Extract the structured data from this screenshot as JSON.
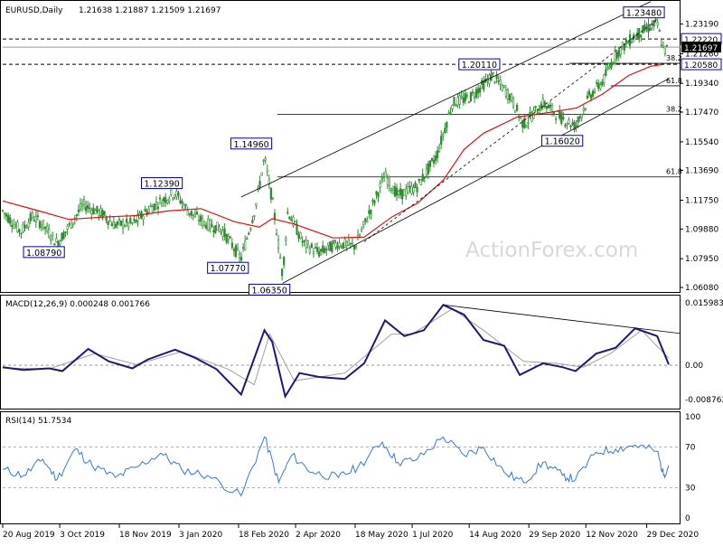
{
  "header": {
    "symbol": "EURUSD,Daily",
    "ohlc": "1.21638 1.21887 1.21509 1.21697"
  },
  "watermark": "ActionForex.com",
  "colors": {
    "candle": "#2e8b2e",
    "ma": "#e01010",
    "trendline": "#000000",
    "macd": "#1a1a7a",
    "signal": "#a0a0a0",
    "rsi": "#3a78d8",
    "label_border": "#0000aa",
    "current_label_bg": "#000000"
  },
  "chart_data": [
    {
      "type": "candlestick",
      "title": "EURUSD,Daily",
      "x_tick_labels": [
        "20 Aug 2019",
        "3 Oct 2019",
        "18 Nov 2019",
        "3 Jan 2020",
        "18 Feb 2020",
        "2 Apr 2020",
        "18 May 2020",
        "1 Jul 2020",
        "14 Aug 2020",
        "29 Sep 2020",
        "12 Nov 2020",
        "29 Dec 2020"
      ],
      "y_tick_labels": [
        "1.23190",
        "1.21260",
        "1.19340",
        "1.17470",
        "1.15540",
        "1.13690",
        "1.11750",
        "1.09880",
        "1.07950",
        "1.06080"
      ],
      "ylim": [
        1.0608,
        1.2405
      ],
      "key_points": [
        {
          "label": "1.08790",
          "date": "2019-10-01",
          "price": 1.0879
        },
        {
          "label": "1.12390",
          "date": "2019-12-31",
          "price": 1.1239
        },
        {
          "label": "1.07770",
          "date": "2020-02-20",
          "price": 1.0777
        },
        {
          "label": "1.14960",
          "date": "2020-03-09",
          "price": 1.1496
        },
        {
          "label": "1.06350",
          "date": "2020-03-23",
          "price": 1.0635
        },
        {
          "label": "1.20110",
          "date": "2020-09-01",
          "price": 1.2011
        },
        {
          "label": "1.16020",
          "date": "2020-11-04",
          "price": 1.1602
        },
        {
          "label": "1.23480",
          "date": "2021-01-06",
          "price": 1.2348
        }
      ],
      "horizontal_levels": [
        {
          "label": "1.22220",
          "price": 1.2222
        },
        {
          "label": "1.20580",
          "price": 1.2058
        }
      ],
      "current_price": {
        "label": "1.21697",
        "price": 1.21697
      },
      "fibonacci_levels": [
        {
          "label": "38.2",
          "price": 1.2064
        },
        {
          "label": "61.8",
          "price": 1.1918
        },
        {
          "label": "38.2",
          "price": 1.1732
        },
        {
          "label": "61.8",
          "price": 1.1326
        }
      ],
      "moving_average_points": [
        {
          "date": "2019-08-20",
          "price": 1.117
        },
        {
          "date": "2019-09-15",
          "price": 1.111
        },
        {
          "date": "2019-10-10",
          "price": 1.105
        },
        {
          "date": "2019-11-05",
          "price": 1.1065
        },
        {
          "date": "2019-12-01",
          "price": 1.1075
        },
        {
          "date": "2019-12-25",
          "price": 1.1105
        },
        {
          "date": "2020-01-20",
          "price": 1.112
        },
        {
          "date": "2020-02-15",
          "price": 1.1035
        },
        {
          "date": "2020-03-05",
          "price": 1.1
        },
        {
          "date": "2020-03-15",
          "price": 1.1055
        },
        {
          "date": "2020-04-01",
          "price": 1.102
        },
        {
          "date": "2020-05-01",
          "price": 1.093
        },
        {
          "date": "2020-05-25",
          "price": 1.0935
        },
        {
          "date": "2020-06-15",
          "price": 1.1065
        },
        {
          "date": "2020-07-05",
          "price": 1.1155
        },
        {
          "date": "2020-07-25",
          "price": 1.1305
        },
        {
          "date": "2020-08-10",
          "price": 1.1505
        },
        {
          "date": "2020-08-25",
          "price": 1.161
        },
        {
          "date": "2020-09-20",
          "price": 1.1715
        },
        {
          "date": "2020-10-15",
          "price": 1.1745
        },
        {
          "date": "2020-11-05",
          "price": 1.1775
        },
        {
          "date": "2020-11-25",
          "price": 1.1865
        },
        {
          "date": "2020-12-15",
          "price": 1.1985
        },
        {
          "date": "2021-01-01",
          "price": 1.2045
        },
        {
          "date": "2021-01-11",
          "price": 1.2058
        }
      ],
      "close_path": [
        {
          "date": "2019-08-20",
          "price": 1.1105
        },
        {
          "date": "2019-09-03",
          "price": 1.097
        },
        {
          "date": "2019-09-12",
          "price": 1.107
        },
        {
          "date": "2019-09-20",
          "price": 1.1015
        },
        {
          "date": "2019-10-01",
          "price": 1.0895
        },
        {
          "date": "2019-10-12",
          "price": 1.1025
        },
        {
          "date": "2019-10-21",
          "price": 1.1145
        },
        {
          "date": "2019-11-05",
          "price": 1.1085
        },
        {
          "date": "2019-11-14",
          "price": 1.1015
        },
        {
          "date": "2019-11-29",
          "price": 1.1025
        },
        {
          "date": "2019-12-12",
          "price": 1.1125
        },
        {
          "date": "2019-12-31",
          "price": 1.1225
        },
        {
          "date": "2020-01-10",
          "price": 1.1105
        },
        {
          "date": "2020-01-23",
          "price": 1.1025
        },
        {
          "date": "2020-02-05",
          "price": 1.0985
        },
        {
          "date": "2020-02-20",
          "price": 1.0795
        },
        {
          "date": "2020-03-02",
          "price": 1.1125
        },
        {
          "date": "2020-03-09",
          "price": 1.1455
        },
        {
          "date": "2020-03-16",
          "price": 1.1125
        },
        {
          "date": "2020-03-23",
          "price": 1.0685
        },
        {
          "date": "2020-03-27",
          "price": 1.1105
        },
        {
          "date": "2020-04-08",
          "price": 1.0895
        },
        {
          "date": "2020-04-20",
          "price": 1.0835
        },
        {
          "date": "2020-05-05",
          "price": 1.0895
        },
        {
          "date": "2020-05-18",
          "price": 1.0875
        },
        {
          "date": "2020-06-01",
          "price": 1.1155
        },
        {
          "date": "2020-06-10",
          "price": 1.1335
        },
        {
          "date": "2020-06-20",
          "price": 1.1205
        },
        {
          "date": "2020-07-05",
          "price": 1.1265
        },
        {
          "date": "2020-07-20",
          "price": 1.1465
        },
        {
          "date": "2020-08-01",
          "price": 1.1805
        },
        {
          "date": "2020-08-15",
          "price": 1.1845
        },
        {
          "date": "2020-09-01",
          "price": 1.1985
        },
        {
          "date": "2020-09-15",
          "price": 1.1845
        },
        {
          "date": "2020-09-25",
          "price": 1.1665
        },
        {
          "date": "2020-10-10",
          "price": 1.1805
        },
        {
          "date": "2020-10-25",
          "price": 1.1705
        },
        {
          "date": "2020-11-04",
          "price": 1.1655
        },
        {
          "date": "2020-11-15",
          "price": 1.1855
        },
        {
          "date": "2020-11-25",
          "price": 1.1945
        },
        {
          "date": "2020-12-05",
          "price": 1.2125
        },
        {
          "date": "2020-12-20",
          "price": 1.2245
        },
        {
          "date": "2021-01-06",
          "price": 1.2325
        },
        {
          "date": "2021-01-11",
          "price": 1.2145
        },
        {
          "date": "2021-01-15",
          "price": 1.2165
        }
      ],
      "channel_lines": [
        {
          "from": {
            "date": "2020-02-20",
            "price": 1.1195
          },
          "to": {
            "date": "2021-01-01",
            "price": 1.2465
          }
        },
        {
          "from": {
            "date": "2020-03-23",
            "price": 1.0635
          },
          "to": {
            "date": "2021-01-15",
            "price": 1.1965
          }
        }
      ]
    },
    {
      "type": "line",
      "title": "MACD(12,26,9) 0.000248 0.001766",
      "y_tick_labels": [
        "0.015983",
        "0.00",
        "-0.008762"
      ],
      "ylim": [
        -0.0095,
        0.0165
      ],
      "series": [
        {
          "name": "MACD",
          "points": [
            {
              "date": "2019-08-20",
              "value": -0.0005
            },
            {
              "date": "2019-09-05",
              "value": -0.0012
            },
            {
              "date": "2019-09-25",
              "value": -0.0008
            },
            {
              "date": "2019-10-05",
              "value": -0.0015
            },
            {
              "date": "2019-10-25",
              "value": 0.0042
            },
            {
              "date": "2019-11-10",
              "value": 0.001
            },
            {
              "date": "2019-11-28",
              "value": -0.0008
            },
            {
              "date": "2019-12-10",
              "value": 0.0015
            },
            {
              "date": "2019-12-31",
              "value": 0.004
            },
            {
              "date": "2020-01-15",
              "value": 0.002
            },
            {
              "date": "2020-02-01",
              "value": -0.001
            },
            {
              "date": "2020-02-20",
              "value": -0.0075
            },
            {
              "date": "2020-03-09",
              "value": 0.009
            },
            {
              "date": "2020-03-15",
              "value": 0.006
            },
            {
              "date": "2020-03-25",
              "value": -0.008
            },
            {
              "date": "2020-04-05",
              "value": -0.002
            },
            {
              "date": "2020-04-20",
              "value": -0.003
            },
            {
              "date": "2020-05-10",
              "value": -0.0035
            },
            {
              "date": "2020-05-25",
              "value": 0.0005
            },
            {
              "date": "2020-06-10",
              "value": 0.0115
            },
            {
              "date": "2020-06-25",
              "value": 0.0075
            },
            {
              "date": "2020-07-10",
              "value": 0.009
            },
            {
              "date": "2020-07-25",
              "value": 0.0155
            },
            {
              "date": "2020-08-10",
              "value": 0.013
            },
            {
              "date": "2020-08-25",
              "value": 0.0065
            },
            {
              "date": "2020-09-10",
              "value": 0.005
            },
            {
              "date": "2020-09-22",
              "value": -0.0025
            },
            {
              "date": "2020-10-10",
              "value": 0.0005
            },
            {
              "date": "2020-10-25",
              "value": -0.0005
            },
            {
              "date": "2020-11-04",
              "value": -0.0015
            },
            {
              "date": "2020-11-20",
              "value": 0.003
            },
            {
              "date": "2020-12-05",
              "value": 0.0045
            },
            {
              "date": "2020-12-20",
              "value": 0.0095
            },
            {
              "date": "2021-01-06",
              "value": 0.0075
            },
            {
              "date": "2021-01-15",
              "value": 0.0002
            }
          ]
        },
        {
          "name": "Signal",
          "points": [
            {
              "date": "2019-08-20",
              "value": -0.0007
            },
            {
              "date": "2019-09-25",
              "value": -0.0009
            },
            {
              "date": "2019-10-30",
              "value": 0.003
            },
            {
              "date": "2019-12-01",
              "value": 0.0002
            },
            {
              "date": "2020-01-05",
              "value": 0.0035
            },
            {
              "date": "2020-02-10",
              "value": -0.001
            },
            {
              "date": "2020-03-01",
              "value": -0.005
            },
            {
              "date": "2020-03-13",
              "value": 0.008
            },
            {
              "date": "2020-04-01",
              "value": -0.004
            },
            {
              "date": "2020-05-10",
              "value": -0.002
            },
            {
              "date": "2020-06-15",
              "value": 0.008
            },
            {
              "date": "2020-07-01",
              "value": 0.008
            },
            {
              "date": "2020-08-01",
              "value": 0.0145
            },
            {
              "date": "2020-08-25",
              "value": 0.009
            },
            {
              "date": "2020-09-25",
              "value": 0.001
            },
            {
              "date": "2020-10-20",
              "value": 0.0005
            },
            {
              "date": "2020-11-10",
              "value": -0.0005
            },
            {
              "date": "2020-12-01",
              "value": 0.003
            },
            {
              "date": "2020-12-25",
              "value": 0.009
            },
            {
              "date": "2021-01-15",
              "value": 0.0018
            }
          ]
        }
      ],
      "trendline": {
        "from": {
          "date": "2020-07-25",
          "value": 0.0155
        },
        "to": {
          "date": "2021-01-15",
          "value": 0.0082
        }
      }
    },
    {
      "type": "line",
      "title": "RSI(14) 51.7534",
      "y_tick_labels": [
        "100",
        "70",
        "30",
        "0"
      ],
      "ylim": [
        0,
        100
      ],
      "reference_levels": [
        70,
        30
      ],
      "series": [
        {
          "name": "RSI",
          "points": [
            {
              "date": "2019-08-20",
              "value": 48
            },
            {
              "date": "2019-09-05",
              "value": 42
            },
            {
              "date": "2019-09-20",
              "value": 58
            },
            {
              "date": "2019-10-01",
              "value": 38
            },
            {
              "date": "2019-10-15",
              "value": 68
            },
            {
              "date": "2019-10-28",
              "value": 52
            },
            {
              "date": "2019-11-15",
              "value": 40
            },
            {
              "date": "2019-12-01",
              "value": 50
            },
            {
              "date": "2019-12-20",
              "value": 64
            },
            {
              "date": "2020-01-05",
              "value": 48
            },
            {
              "date": "2020-01-25",
              "value": 42
            },
            {
              "date": "2020-02-20",
              "value": 22
            },
            {
              "date": "2020-03-09",
              "value": 80
            },
            {
              "date": "2020-03-20",
              "value": 35
            },
            {
              "date": "2020-03-30",
              "value": 62
            },
            {
              "date": "2020-04-15",
              "value": 45
            },
            {
              "date": "2020-05-05",
              "value": 40
            },
            {
              "date": "2020-05-20",
              "value": 50
            },
            {
              "date": "2020-06-08",
              "value": 75
            },
            {
              "date": "2020-06-20",
              "value": 55
            },
            {
              "date": "2020-07-05",
              "value": 58
            },
            {
              "date": "2020-07-25",
              "value": 80
            },
            {
              "date": "2020-08-10",
              "value": 62
            },
            {
              "date": "2020-08-25",
              "value": 70
            },
            {
              "date": "2020-09-10",
              "value": 45
            },
            {
              "date": "2020-09-25",
              "value": 35
            },
            {
              "date": "2020-10-10",
              "value": 55
            },
            {
              "date": "2020-10-25",
              "value": 42
            },
            {
              "date": "2020-11-04",
              "value": 38
            },
            {
              "date": "2020-11-20",
              "value": 65
            },
            {
              "date": "2020-12-05",
              "value": 68
            },
            {
              "date": "2020-12-20",
              "value": 72
            },
            {
              "date": "2021-01-06",
              "value": 66
            },
            {
              "date": "2021-01-11",
              "value": 42
            },
            {
              "date": "2021-01-15",
              "value": 52
            }
          ]
        }
      ]
    }
  ]
}
